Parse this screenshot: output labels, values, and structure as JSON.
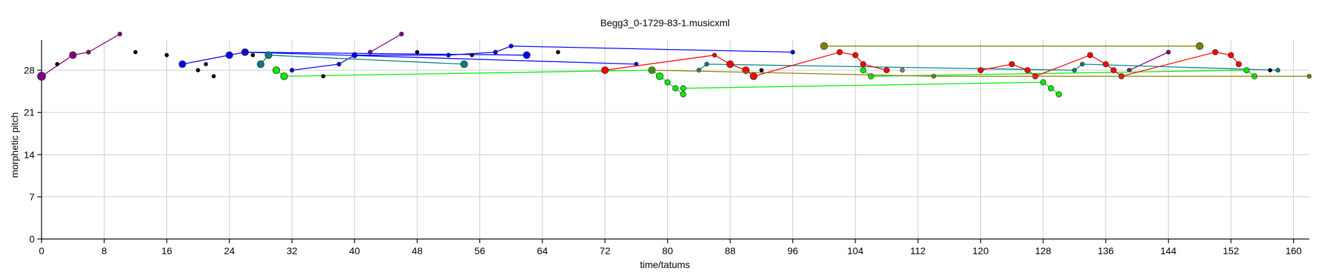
{
  "chart_data": {
    "type": "scatter",
    "title": "Begg3_0-1729-83-1.musicxml",
    "xlabel": "time/tatums",
    "ylabel": "morphetic pitch",
    "xlim": [
      0,
      162
    ],
    "ylim": [
      0,
      33
    ],
    "xticks": [
      0,
      8,
      16,
      24,
      32,
      40,
      48,
      56,
      64,
      72,
      80,
      88,
      96,
      104,
      112,
      120,
      128,
      136,
      144,
      152,
      160
    ],
    "yticks": [
      0,
      7,
      14,
      21,
      28
    ],
    "grid": true,
    "black_points": [
      [
        2,
        29
      ],
      [
        12,
        31
      ],
      [
        16,
        30.5
      ],
      [
        20,
        28
      ],
      [
        21,
        29
      ],
      [
        22,
        27
      ],
      [
        27,
        30.5
      ],
      [
        36,
        27
      ],
      [
        48,
        31
      ],
      [
        55,
        30.5
      ],
      [
        66,
        31
      ],
      [
        92,
        28
      ],
      [
        157,
        28
      ]
    ],
    "series": [
      {
        "color": "#800080",
        "points": [
          [
            0,
            27,
            6
          ],
          [
            4,
            30.5,
            5
          ],
          [
            6,
            31,
            3
          ],
          [
            10,
            34,
            3
          ]
        ],
        "connect": true
      },
      {
        "color": "#800080",
        "points": [
          [
            42,
            31,
            3
          ],
          [
            46,
            34,
            3
          ]
        ],
        "connect": true
      },
      {
        "color": "#800080",
        "points": [
          [
            139,
            28,
            3
          ],
          [
            144,
            31,
            3
          ]
        ],
        "connect": true
      },
      {
        "color": "#0000ff",
        "points": [
          [
            18,
            29,
            5
          ],
          [
            24,
            30.5,
            5
          ],
          [
            26,
            31,
            5
          ],
          [
            62,
            30.5,
            5
          ]
        ],
        "connect": true
      },
      {
        "color": "#0000ff",
        "points": [
          [
            32,
            28,
            3
          ],
          [
            38,
            29,
            3
          ],
          [
            40,
            30.5,
            4
          ],
          [
            52,
            30.5,
            3
          ],
          [
            58,
            31,
            3
          ],
          [
            60,
            32,
            3
          ],
          [
            96,
            31,
            3
          ]
        ],
        "connect": true
      },
      {
        "color": "#0000ff",
        "points": [
          [
            26,
            31,
            3
          ],
          [
            76,
            29,
            3
          ]
        ],
        "connect": true
      },
      {
        "color": "#008080",
        "points": [
          [
            28,
            29,
            5
          ],
          [
            29,
            30.5,
            5
          ],
          [
            54,
            29,
            5
          ]
        ],
        "connect": true
      },
      {
        "color": "#008080",
        "points": [
          [
            84,
            28,
            3
          ],
          [
            85,
            29,
            3
          ],
          [
            132,
            28,
            3
          ],
          [
            133,
            29,
            3
          ],
          [
            158,
            28,
            3
          ]
        ],
        "connect": true
      },
      {
        "color": "#00ee00",
        "points": [
          [
            30,
            28,
            5
          ],
          [
            31,
            27,
            5
          ],
          [
            78,
            28,
            5
          ],
          [
            79,
            27,
            5
          ],
          [
            80,
            26,
            4
          ],
          [
            81,
            25,
            4
          ],
          [
            82,
            24,
            4
          ]
        ],
        "connect": true
      },
      {
        "color": "#00ee00",
        "points": [
          [
            82,
            25,
            4
          ],
          [
            128,
            26,
            4
          ],
          [
            129,
            25,
            4
          ],
          [
            130,
            24,
            4
          ]
        ],
        "connect": true
      },
      {
        "color": "#00ee00",
        "points": [
          [
            105,
            28,
            4
          ],
          [
            106,
            27,
            4
          ],
          [
            154,
            28,
            4
          ],
          [
            155,
            27,
            4
          ]
        ],
        "connect": true
      },
      {
        "color": "#ff0000",
        "points": [
          [
            72,
            28,
            5
          ],
          [
            86,
            30.5,
            3
          ],
          [
            88,
            29,
            5
          ],
          [
            90,
            28,
            5
          ],
          [
            91,
            27,
            5
          ],
          [
            102,
            31,
            4
          ],
          [
            104,
            30.5,
            4
          ],
          [
            105,
            29,
            4
          ],
          [
            108,
            28,
            4
          ]
        ],
        "connect": true
      },
      {
        "color": "#ff0000",
        "points": [
          [
            120,
            28,
            4
          ],
          [
            124,
            29,
            4
          ],
          [
            126,
            28,
            4
          ],
          [
            127,
            27,
            4
          ],
          [
            134,
            30.5,
            4
          ],
          [
            136,
            29,
            4
          ],
          [
            137,
            28,
            4
          ],
          [
            138,
            27,
            4
          ],
          [
            150,
            31,
            4
          ],
          [
            152,
            30.5,
            4
          ],
          [
            153,
            29,
            4
          ]
        ],
        "connect": true
      },
      {
        "color": "#808000",
        "points": [
          [
            100,
            32,
            5
          ],
          [
            148,
            32,
            5
          ]
        ],
        "connect": true
      },
      {
        "color": "#808000",
        "points": [
          [
            78,
            28,
            3
          ],
          [
            114,
            27,
            3
          ],
          [
            162,
            27,
            3
          ]
        ],
        "connect": true
      },
      {
        "color": "#808080",
        "points": [
          [
            110,
            28,
            3
          ]
        ],
        "connect": false
      }
    ]
  }
}
